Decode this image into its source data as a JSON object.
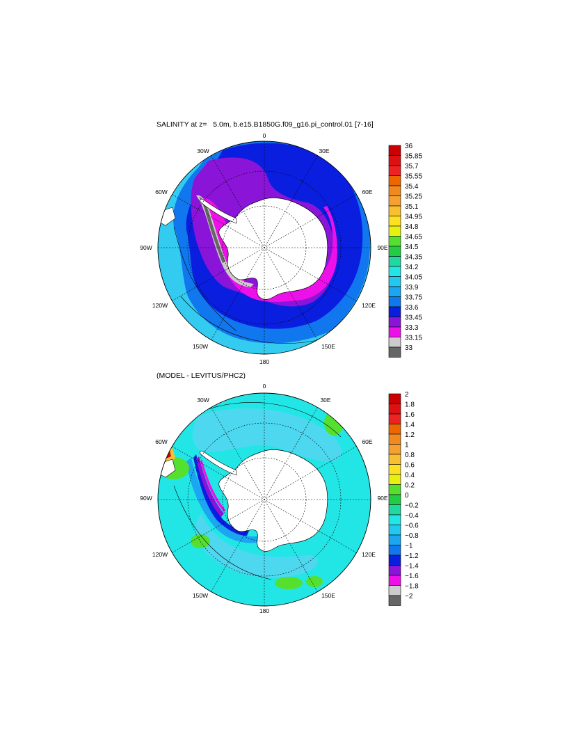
{
  "top_panel": {
    "title": "SALINITY at z=   5.0m, b.e15.B1850G.f09_g16.pi_control.01 [7-16]",
    "lon_labels": {
      "n0": "0",
      "n30e": "30E",
      "n60e": "60E",
      "n90e": "90E",
      "n120e": "120E",
      "n150e": "150E",
      "n180": "180",
      "n150w": "150W",
      "n120w": "120W",
      "n90w": "90W",
      "n60w": "60W",
      "n30w": "30W"
    },
    "colorbar": {
      "labels": [
        "36",
        "35.85",
        "35.7",
        "35.55",
        "35.4",
        "35.25",
        "35.1",
        "34.95",
        "34.8",
        "34.65",
        "34.5",
        "34.35",
        "34.2",
        "34.05",
        "33.9",
        "33.75",
        "33.6",
        "33.45",
        "33.3",
        "33.15",
        "33"
      ],
      "colors": [
        "#cc0000",
        "#dd1111",
        "#ee2222",
        "#ee6600",
        "#f08a1e",
        "#f5a030",
        "#f8c030",
        "#ffe020",
        "#e8f010",
        "#55e030",
        "#22cc44",
        "#20d8a0",
        "#22e6e6",
        "#22c8f0",
        "#1aa6f0",
        "#1177ee",
        "#0a1ee0",
        "#8a14d8",
        "#ee10e8",
        "#cccccc",
        "#666666"
      ]
    },
    "map_colors": {
      "ocean_outer": "#33ccf0",
      "band1": "#1177ee",
      "band2": "#0a1ee0",
      "band3": "#8a14d8",
      "band4": "#ee10e8",
      "band5": "#cccccc",
      "band6": "#666666",
      "land": "#ffffff"
    }
  },
  "bottom_panel": {
    "title": "(MODEL - LEVITUS/PHC2)",
    "lon_labels": {
      "n0": "0",
      "n30e": "30E",
      "n60e": "60E",
      "n90e": "90E",
      "n120e": "120E",
      "n150e": "150E",
      "n180": "180",
      "n150w": "150W",
      "n120w": "120W",
      "n90w": "90W",
      "n60w": "60W",
      "n30w": "30W"
    },
    "colorbar": {
      "labels": [
        "2",
        "1.8",
        "1.6",
        "1.4",
        "1.2",
        "1",
        "0.8",
        "0.6",
        "0.4",
        "0.2",
        "0",
        "−0.2",
        "−0.4",
        "−0.6",
        "−0.8",
        "−1",
        "−1.2",
        "−1.4",
        "−1.6",
        "−1.8",
        "−2"
      ],
      "colors": [
        "#cc0000",
        "#dd1111",
        "#ee2222",
        "#ee6600",
        "#f08a1e",
        "#f5a030",
        "#f8c030",
        "#ffe020",
        "#e8f010",
        "#55e030",
        "#22cc44",
        "#20d8a0",
        "#22e6e6",
        "#22c8f0",
        "#1aa6f0",
        "#1177ee",
        "#0a1ee0",
        "#8a14d8",
        "#ee10e8",
        "#cccccc",
        "#666666"
      ]
    },
    "map_colors": {
      "ocean": "#22e6e6",
      "light": "#4dd8f0",
      "mid": "#1aa6f0",
      "dark": "#0a1ee0",
      "purple": "#8a14d8",
      "magenta": "#ee10e8",
      "green": "#55e030",
      "land": "#ffffff"
    }
  }
}
